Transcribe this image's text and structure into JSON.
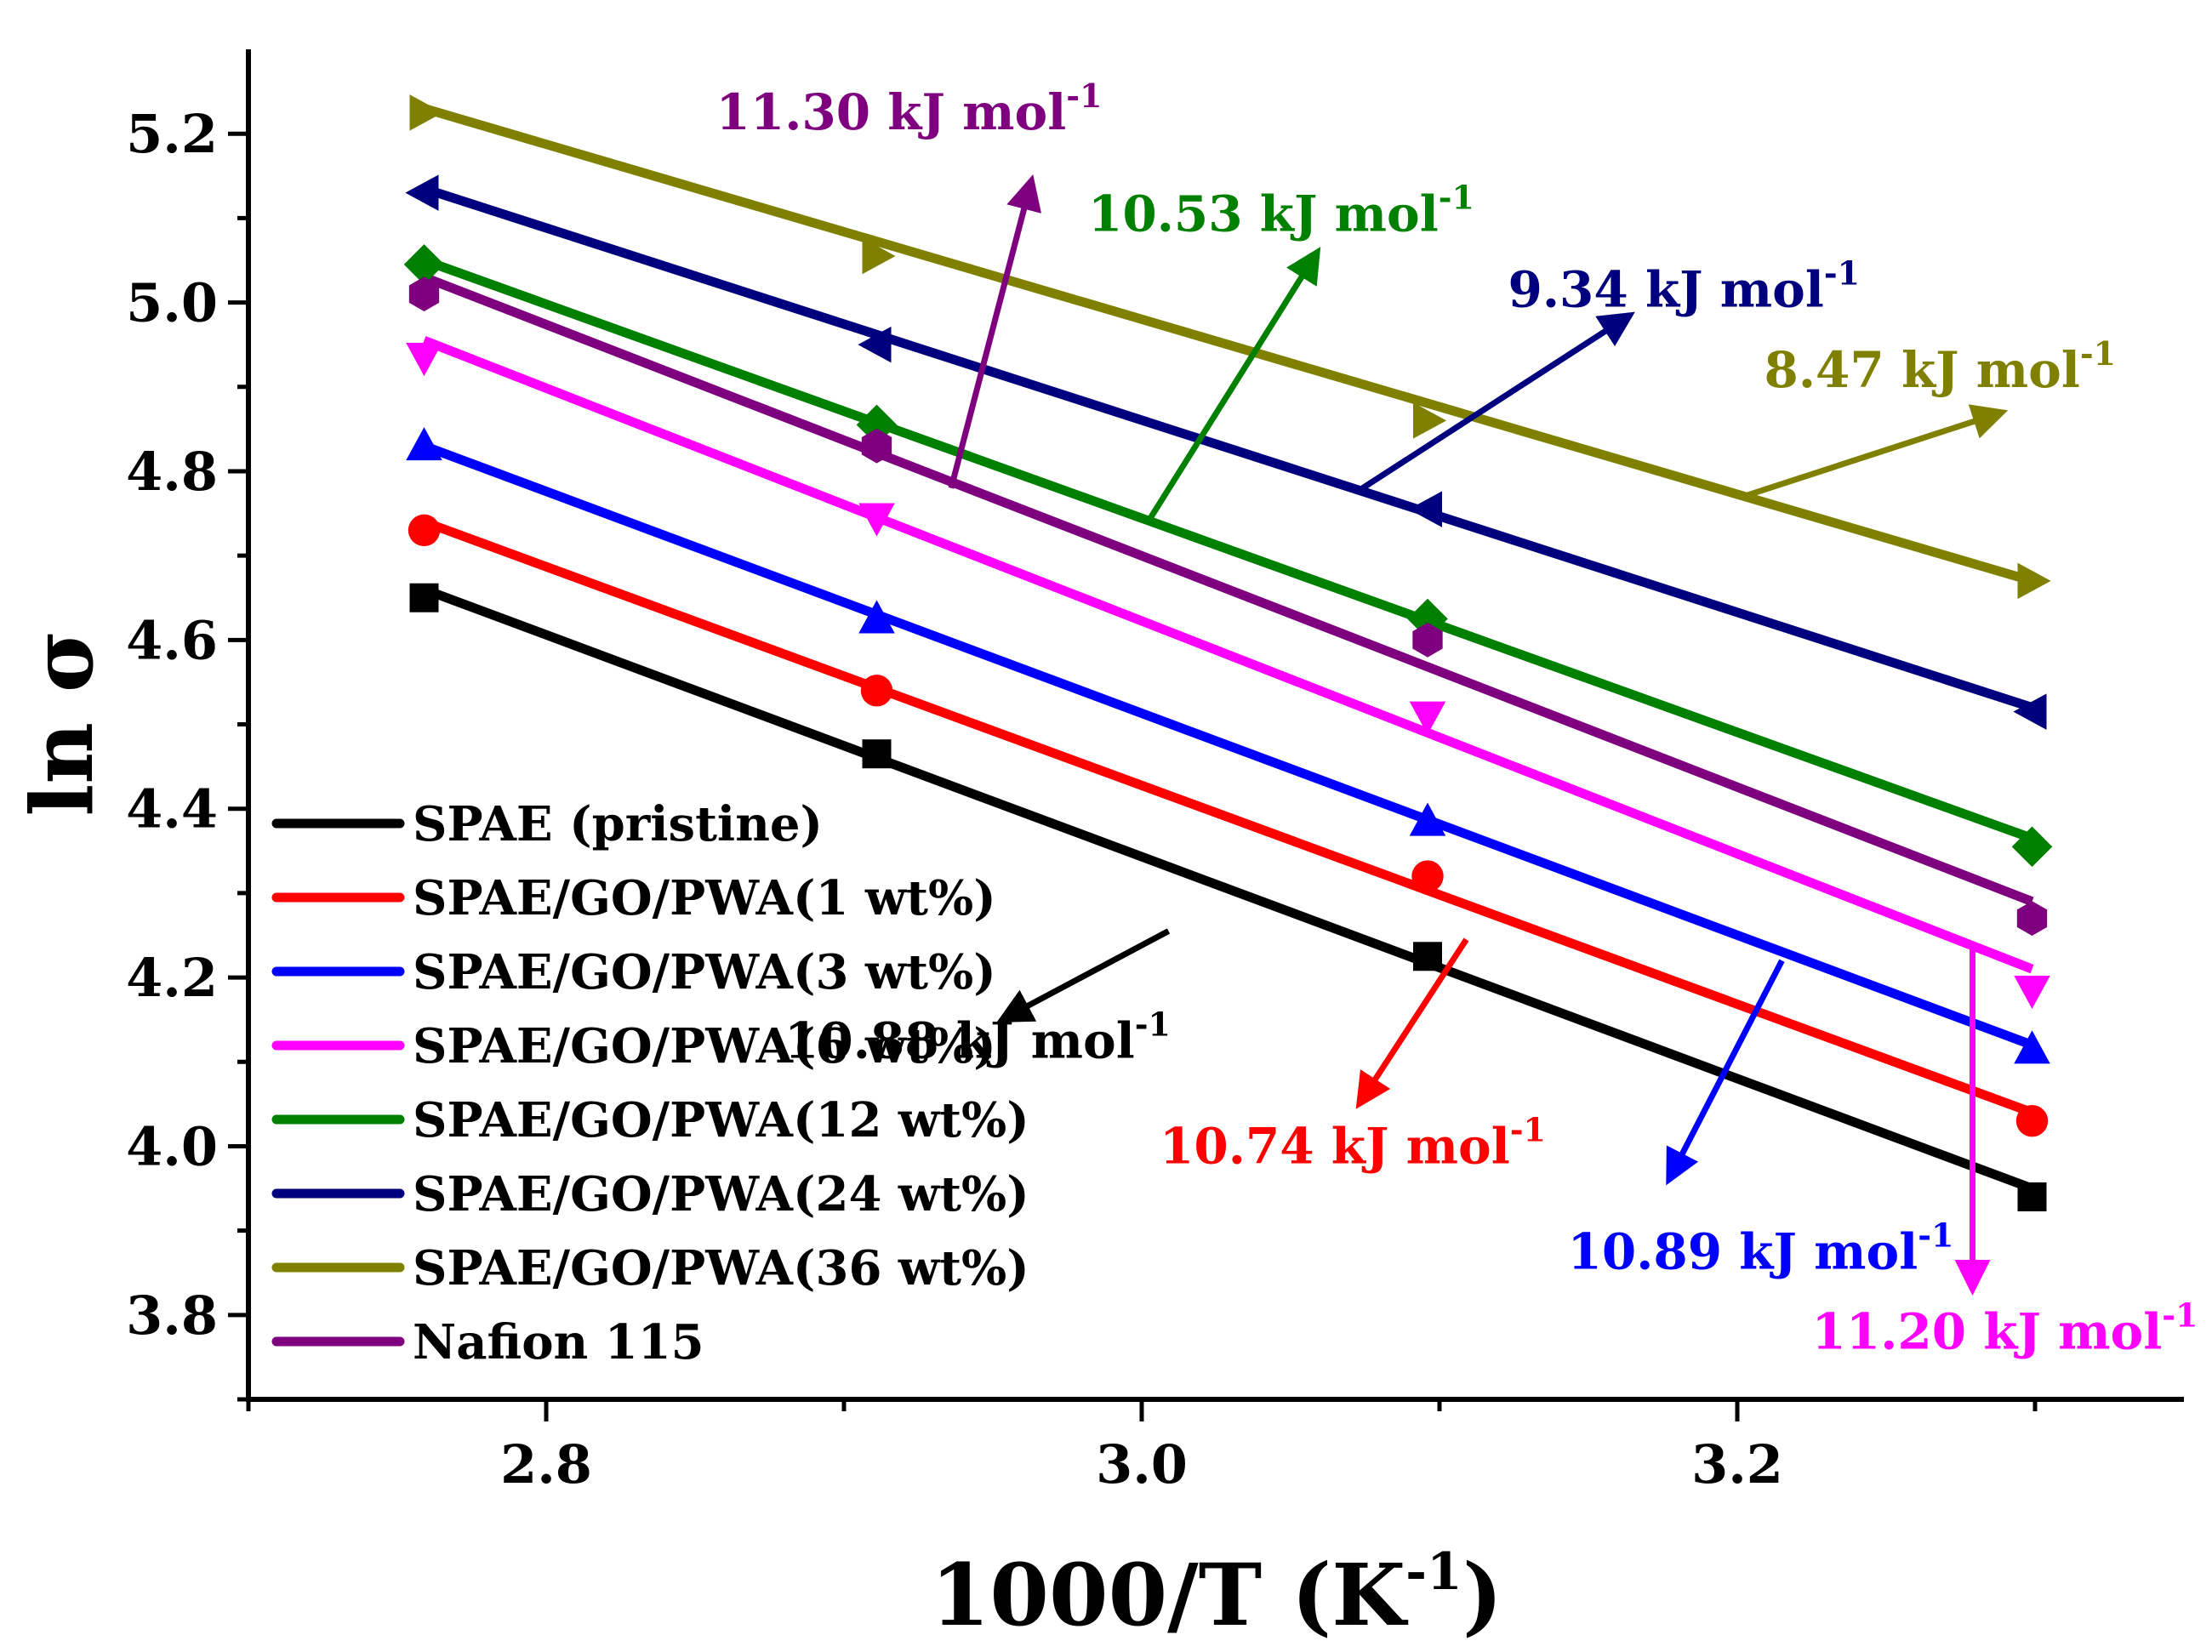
{
  "chart_data": {
    "type": "scatter",
    "xlabel": "1000/T (K",
    "xlabel_sup": "-1",
    "xlabel_close": ")",
    "ylabel": "ln σ",
    "xlim": [
      2.7,
      3.35
    ],
    "ylim": [
      3.7,
      5.3
    ],
    "xticks": [
      2.8,
      3.0,
      3.2
    ],
    "xtick_labels": [
      "2.8",
      "3.0",
      "3.2"
    ],
    "yticks": [
      3.8,
      4.0,
      4.2,
      4.4,
      4.6,
      4.8,
      5.0,
      5.2
    ],
    "ytick_labels": [
      "3.8",
      "4.0",
      "4.2",
      "4.4",
      "4.6",
      "4.8",
      "5.0",
      "5.2"
    ],
    "x": [
      2.759,
      2.911,
      3.096,
      3.299
    ],
    "legend_position": "bottom-left",
    "series": [
      {
        "name": "SPAE (pristine)",
        "color": "#000000",
        "marker": "square",
        "values": [
          4.65,
          4.465,
          4.225,
          3.94
        ],
        "fit": [
          4.66,
          3.95
        ]
      },
      {
        "name": "SPAE/GO/PWA(1 wt%)",
        "color": "#ff0000",
        "marker": "circle",
        "values": [
          4.73,
          4.54,
          4.32,
          4.03
        ],
        "fit": [
          4.74,
          4.04
        ]
      },
      {
        "name": "SPAE/GO/PWA(3 wt%)",
        "color": "#0000ff",
        "marker": "triangle-up",
        "values": [
          4.83,
          4.625,
          4.385,
          4.115
        ],
        "fit": [
          4.83,
          4.12
        ]
      },
      {
        "name": "SPAE/GO/PWA(6 wt%)",
        "color": "#ff00ff",
        "marker": "triangle-down",
        "values": [
          4.935,
          4.745,
          4.51,
          4.185
        ],
        "fit": [
          4.955,
          4.21
        ]
      },
      {
        "name": "SPAE/GO/PWA(12 wt%)",
        "color": "#008000",
        "marker": "diamond",
        "values": [
          5.045,
          4.855,
          4.625,
          4.355
        ],
        "fit": [
          5.05,
          4.365
        ]
      },
      {
        "name": "SPAE/GO/PWA(24 wt%)",
        "color": "#00007f",
        "marker": "triangle-left",
        "values": [
          5.13,
          4.95,
          4.755,
          4.515
        ],
        "fit": [
          5.135,
          4.52
        ]
      },
      {
        "name": "SPAE/GO/PWA(36 wt%)",
        "color": "#808000",
        "marker": "triangle-right",
        "values": [
          5.225,
          5.055,
          4.86,
          4.67
        ],
        "fit": [
          5.23,
          4.67
        ]
      },
      {
        "name": "Nafion 115",
        "color": "#7f007f",
        "marker": "hexagon",
        "values": [
          5.01,
          4.83,
          4.6,
          4.27
        ],
        "fit": [
          5.03,
          4.29
        ]
      }
    ],
    "annotations": [
      {
        "text": "11.30 kJ mol",
        "sup": "-1",
        "color": "#7f007f",
        "text_at": [
          2.857,
          5.205
        ],
        "arrow_from": [
          2.936,
          4.78
        ],
        "arrow_to": [
          2.963,
          5.145
        ]
      },
      {
        "text": "10.53 kJ mol",
        "sup": "-1",
        "color": "#008000",
        "text_at": [
          2.982,
          5.085
        ],
        "arrow_from": [
          3.003,
          4.745
        ],
        "arrow_to": [
          3.059,
          5.06
        ]
      },
      {
        "text": "9.34 kJ mol",
        "sup": "-1",
        "color": "#00007f",
        "text_at": [
          3.123,
          4.995
        ],
        "arrow_from": [
          3.072,
          4.775
        ],
        "arrow_to": [
          3.164,
          4.985
        ]
      },
      {
        "text": "8.47 kJ mol",
        "sup": "-1",
        "color": "#808000",
        "text_at": [
          3.209,
          4.9
        ],
        "arrow_from": [
          3.202,
          4.77
        ],
        "arrow_to": [
          3.289,
          4.87
        ]
      },
      {
        "text": "10.88 kJ mol",
        "sup": "-1",
        "color": "#000000",
        "text_at": [
          2.88,
          4.105
        ],
        "arrow_from": [
          3.009,
          4.255
        ],
        "arrow_to": [
          2.953,
          4.15
        ]
      },
      {
        "text": "10.74 kJ mol",
        "sup": "-1",
        "color": "#ff0000",
        "text_at": [
          3.006,
          3.98
        ],
        "arrow_from": [
          3.109,
          4.245
        ],
        "arrow_to": [
          3.073,
          4.05
        ]
      },
      {
        "text": "10.89 kJ mol",
        "sup": "-1",
        "color": "#0000ff",
        "text_at": [
          3.143,
          3.855
        ],
        "arrow_from": [
          3.215,
          4.22
        ],
        "arrow_to": [
          3.177,
          3.96
        ]
      },
      {
        "text": "11.20 kJ mol",
        "sup": "-1",
        "color": "#ff00ff",
        "text_at": [
          3.225,
          3.76
        ],
        "arrow_from": [
          3.279,
          4.235
        ],
        "arrow_to": [
          3.279,
          3.83
        ]
      }
    ]
  }
}
